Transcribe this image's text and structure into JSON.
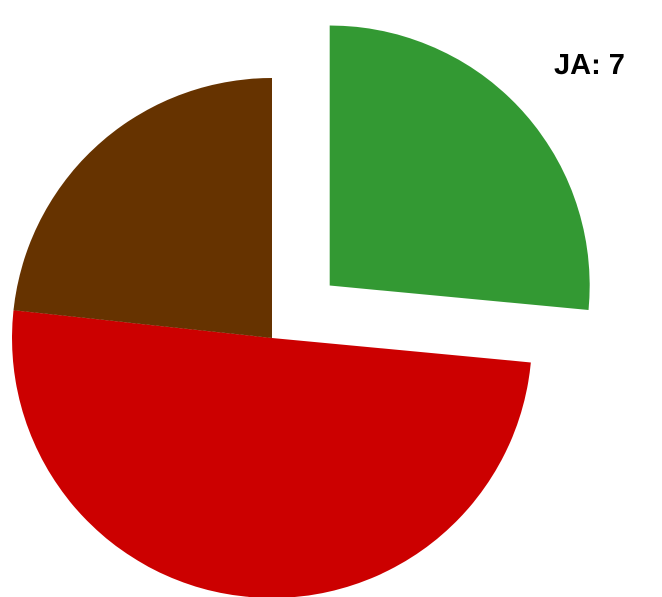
{
  "chart_data": {
    "type": "pie",
    "title": "",
    "slices": [
      {
        "label": "JA",
        "value": 7,
        "percent": 26.5,
        "color": "#339933",
        "exploded": true,
        "show_label": true
      },
      {
        "label": "",
        "value": null,
        "percent": 50.2,
        "color": "#cc0000",
        "exploded": false,
        "show_label": false
      },
      {
        "label": "",
        "value": null,
        "percent": 23.3,
        "color": "#663300",
        "exploded": false,
        "show_label": false
      }
    ],
    "start_angle_deg": 0,
    "direction": "clockwise",
    "legend": "none"
  },
  "labels": {
    "ja_label": "JA: 7"
  }
}
